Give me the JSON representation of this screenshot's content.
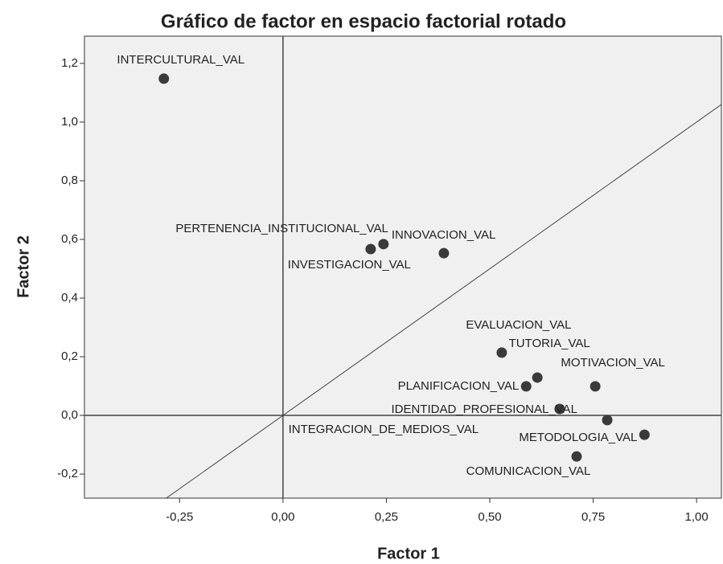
{
  "chart_data": {
    "type": "scatter",
    "title": "Gráfico de factor en espacio factorial rotado",
    "x_label": "Factor 1",
    "y_label": "Factor 2",
    "color": "#3a3a3a",
    "labels": [
      "INTERCULTURAL_VAL",
      "PERTENENCIA_INSTITUCIONAL_VAL",
      "INNOVACION_VAL",
      "INVESTIGACION_VAL",
      "EVALUACION_VAL",
      "TUTORIA_VAL",
      "MOTIVACION_VAL",
      "PLANIFICACION_VAL",
      "IDENTIDAD_PROFESIONAL_VAL",
      "INTEGRACION_DE_MEDIOS_VAL",
      "METODOLOGIA_VAL",
      "COMUNICACION_VAL"
    ],
    "x": [
      -0.288,
      0.212,
      0.243,
      0.389,
      0.529,
      0.615,
      0.755,
      0.588,
      0.669,
      0.784,
      0.874,
      0.71
    ],
    "values": [
      1.148,
      0.567,
      0.584,
      0.553,
      0.214,
      0.129,
      0.099,
      0.099,
      0.022,
      -0.016,
      -0.066,
      -0.14
    ],
    "xlim": [
      -0.48,
      1.06
    ],
    "ylim": [
      -0.282,
      1.293
    ],
    "xticks": [
      {
        "value": -0.25,
        "label": "-0,25"
      },
      {
        "value": 0,
        "label": "0,00"
      },
      {
        "value": 0.25,
        "label": "0,25"
      },
      {
        "value": 0.5,
        "label": "0,50"
      },
      {
        "value": 0.75,
        "label": "0,75"
      },
      {
        "value": 1,
        "label": "1,00"
      }
    ],
    "yticks": [
      {
        "value": -0.2,
        "label": "-0,2"
      },
      {
        "value": 0,
        "label": "0,0"
      },
      {
        "value": 0.2,
        "label": "0,2"
      },
      {
        "value": 0.4,
        "label": "0,4"
      },
      {
        "value": 0.6,
        "label": "0,6"
      },
      {
        "value": 0.8,
        "label": "0,8"
      },
      {
        "value": 1,
        "label": "1,0"
      },
      {
        "value": 1.2,
        "label": "1,2"
      }
    ]
  }
}
